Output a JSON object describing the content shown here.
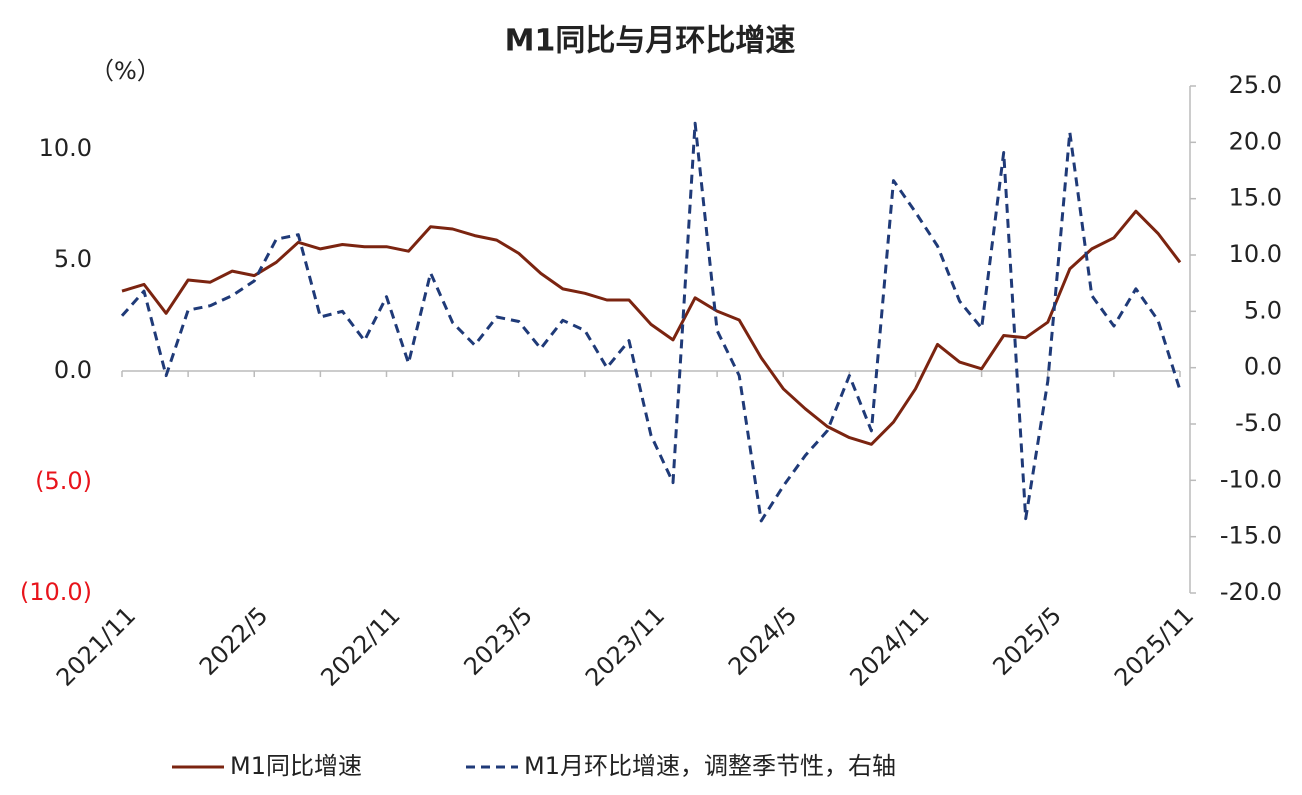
{
  "chart_data": {
    "type": "line",
    "title": "M1同比与月环比增速",
    "y_unit": "（%）",
    "categories": [
      "2021/11",
      null,
      null,
      null,
      null,
      null,
      "2022/5",
      null,
      null,
      null,
      null,
      null,
      "2022/11",
      null,
      null,
      null,
      null,
      null,
      "2023/5",
      null,
      null,
      null,
      null,
      null,
      "2023/11",
      null,
      null,
      null,
      null,
      null,
      "2024/5",
      null,
      null,
      null,
      null,
      null,
      "2024/11",
      null,
      null,
      null,
      null,
      null,
      "2025/5",
      null,
      null,
      null,
      null,
      null,
      "2025/11"
    ],
    "series": [
      {
        "name": "M1同比增速",
        "color": "#7b2410",
        "dash": false,
        "axis": "y",
        "values": [
          3.6,
          3.9,
          2.6,
          4.1,
          4.0,
          4.5,
          4.3,
          4.9,
          5.8,
          5.5,
          5.7,
          5.6,
          5.6,
          5.4,
          6.5,
          6.4,
          6.1,
          5.9,
          5.3,
          4.4,
          3.7,
          3.5,
          3.2,
          3.2,
          2.1,
          1.4,
          3.3,
          2.7,
          2.3,
          0.6,
          -0.8,
          -1.7,
          -2.5,
          -3.0,
          -3.3,
          -2.3,
          -0.8,
          1.2,
          0.4,
          0.1,
          1.6,
          1.5,
          2.2,
          4.6,
          5.5,
          6.0,
          7.2,
          6.2,
          4.9
        ]
      },
      {
        "name": "M1月环比增速，调整季节性，右轴",
        "color": "#1f3a78",
        "dash": true,
        "axis": "y2",
        "values": [
          4.6,
          6.8,
          -0.7,
          5.1,
          5.5,
          6.4,
          7.7,
          11.4,
          11.8,
          4.5,
          5.0,
          2.4,
          6.3,
          0.4,
          8.4,
          4.0,
          2.0,
          4.5,
          4.1,
          1.7,
          4.2,
          3.3,
          0.0,
          2.4,
          -6.0,
          -10.2,
          21.7,
          3.3,
          -0.7,
          -13.6,
          -10.5,
          -7.8,
          -5.6,
          -0.7,
          -5.6,
          16.6,
          13.8,
          10.8,
          5.9,
          3.5,
          19.1,
          -13.4,
          -1.2,
          20.9,
          6.4,
          3.7,
          7.0,
          4.2,
          -2.0
        ]
      }
    ],
    "ylim": [
      -10,
      12.84
    ],
    "yticks": [
      {
        "value": -10,
        "label": "(10.0)"
      },
      {
        "value": -5,
        "label": "(5.0)"
      },
      {
        "value": 0,
        "label": "0.0"
      },
      {
        "value": 5,
        "label": "5.0"
      },
      {
        "value": 10,
        "label": "10.0"
      }
    ],
    "y2lim": [
      -20,
      25
    ],
    "y2ticks": [
      {
        "value": -20,
        "label": "-20.0"
      },
      {
        "value": -15,
        "label": "-15.0"
      },
      {
        "value": -10,
        "label": "-10.0"
      },
      {
        "value": -5,
        "label": "-5.0"
      },
      {
        "value": 0,
        "label": "0.0"
      },
      {
        "value": 5,
        "label": "5.0"
      },
      {
        "value": 10,
        "label": "10.0"
      },
      {
        "value": 15,
        "label": "15.0"
      },
      {
        "value": 20,
        "label": "20.0"
      },
      {
        "value": 25,
        "label": "25.0"
      }
    ],
    "negative_label_color": "#e8141b",
    "grid": false,
    "legend": "bottom"
  }
}
